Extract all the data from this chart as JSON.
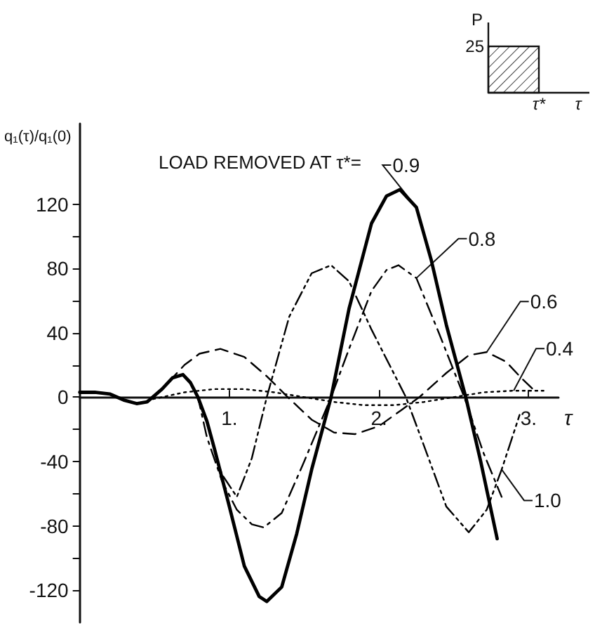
{
  "chart_data": {
    "type": "line",
    "title": "LOAD REMOVED AT τ*=",
    "xlabel": "τ",
    "ylabel": "q₁(τ)/q₁(0)",
    "xlim": [
      0,
      3.2
    ],
    "xticks": [
      {
        "value": 1,
        "label": "1."
      },
      {
        "value": 2,
        "label": "2."
      },
      {
        "value": 3,
        "label": "3."
      }
    ],
    "ylim": [
      -140,
      170
    ],
    "yticks": [
      -120,
      {
        "value": -100,
        "label": null
      },
      -80,
      {
        "value": -60,
        "label": null
      },
      -40,
      {
        "value": -20,
        "label": null
      },
      0,
      {
        "value": 20,
        "label": null
      },
      40,
      {
        "value": 60,
        "label": null
      },
      80,
      {
        "value": 100,
        "label": null
      },
      120
    ],
    "grid": false,
    "legend": false,
    "marker": "none",
    "annotations": [
      "P",
      "25",
      "τ*",
      "τ"
    ],
    "series": [
      {
        "name": "0.9",
        "color": "#000000",
        "line_style": "solid",
        "x": [
          0,
          0.1,
          0.2,
          0.3,
          0.38,
          0.45,
          0.55,
          0.62,
          0.69,
          0.74,
          0.79,
          0.85,
          0.9,
          1.0,
          1.1,
          1.2,
          1.25,
          1.35,
          1.45,
          1.55,
          1.68,
          1.8,
          1.95,
          2.05,
          2.14,
          2.25,
          2.35,
          2.45,
          2.58,
          2.68,
          2.79
        ],
        "values": [
          3,
          3,
          2,
          -2,
          -4,
          -3,
          5,
          12,
          14,
          9,
          0,
          -15,
          -32,
          -68,
          -105,
          -124,
          -127,
          -118,
          -85,
          -45,
          0,
          55,
          108,
          125,
          129,
          118,
          85,
          45,
          0,
          -40,
          -88
        ]
      },
      {
        "name": "0.8",
        "color": "#000000",
        "line_style": "dashdot",
        "x": [
          0,
          0.1,
          0.2,
          0.3,
          0.38,
          0.45,
          0.55,
          0.62,
          0.69,
          0.74,
          0.79,
          0.85,
          0.95,
          1.05,
          1.15,
          1.23,
          1.35,
          1.5,
          1.68,
          1.8,
          1.95,
          2.05,
          2.13,
          2.25,
          2.4,
          2.57,
          2.7,
          2.82
        ],
        "values": [
          3,
          3,
          2,
          -2,
          -4,
          -3,
          5,
          12,
          14,
          9,
          0,
          -25,
          -52,
          -70,
          -79,
          -81,
          -72,
          -40,
          0,
          30,
          66,
          79,
          82,
          74,
          40,
          0,
          -35,
          -62
        ]
      },
      {
        "name": "0.6",
        "color": "#000000",
        "line_style": "dashed",
        "x": [
          0,
          0.1,
          0.2,
          0.3,
          0.38,
          0.45,
          0.55,
          0.6,
          0.7,
          0.8,
          0.94,
          1.1,
          1.25,
          1.39,
          1.55,
          1.7,
          1.84,
          2.0,
          2.15,
          2.27,
          2.45,
          2.6,
          2.72,
          2.85,
          2.95,
          3.04
        ],
        "values": [
          3,
          3,
          2,
          -2,
          -4,
          -3,
          5,
          10,
          20,
          27,
          30,
          25,
          13,
          0,
          -14,
          -22,
          -23,
          -18,
          -8,
          0,
          15,
          26,
          28,
          22,
          12,
          4
        ]
      },
      {
        "name": "0.4",
        "color": "#000000",
        "line_style": "dotted",
        "x": [
          0,
          0.1,
          0.2,
          0.3,
          0.38,
          0.5,
          0.7,
          0.9,
          1.1,
          1.3,
          1.5,
          1.7,
          1.9,
          2.1,
          2.3,
          2.5,
          2.7,
          2.9,
          3.1
        ],
        "values": [
          3,
          3,
          2,
          -2,
          -4,
          -1,
          3,
          5,
          5,
          3,
          0,
          -3,
          -5,
          -5,
          -3,
          0,
          3,
          4,
          4
        ]
      },
      {
        "name": "1.0",
        "color": "#000000",
        "line_style": "dashdotdot",
        "x": [
          0,
          0.1,
          0.2,
          0.3,
          0.38,
          0.45,
          0.55,
          0.62,
          0.69,
          0.74,
          0.79,
          0.85,
          0.9,
          0.95,
          1.05,
          1.15,
          1.25,
          1.4,
          1.55,
          1.68,
          1.8,
          1.95,
          2.18,
          2.3,
          2.45,
          2.6,
          2.72,
          2.82,
          2.94
        ],
        "values": [
          3,
          3,
          2,
          -2,
          -4,
          -3,
          5,
          12,
          14,
          9,
          0,
          -15,
          -32,
          -48,
          -62,
          -38,
          0,
          50,
          77,
          82,
          72,
          42,
          0,
          -30,
          -68,
          -84,
          -70,
          -45,
          -11
        ]
      }
    ]
  }
}
